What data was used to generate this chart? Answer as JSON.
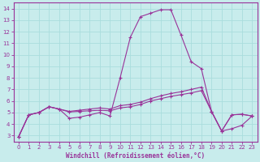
{
  "xlabel": "Windchill (Refroidissement éolien,°C)",
  "xlim": [
    -0.5,
    23.5
  ],
  "ylim": [
    2.5,
    14.5
  ],
  "yticks": [
    3,
    4,
    5,
    6,
    7,
    8,
    9,
    10,
    11,
    12,
    13,
    14
  ],
  "xticks": [
    0,
    1,
    2,
    3,
    4,
    5,
    6,
    7,
    8,
    9,
    10,
    11,
    12,
    13,
    14,
    15,
    16,
    17,
    18,
    19,
    20,
    21,
    22,
    23
  ],
  "bg_color": "#c8ecec",
  "line_color": "#993399",
  "grid_color": "#aadddd",
  "series1_x": [
    0,
    1,
    2,
    3,
    4,
    5,
    6,
    7,
    8,
    9,
    10,
    11,
    12,
    13,
    14,
    15,
    16,
    17,
    18,
    19,
    20,
    21,
    22,
    23
  ],
  "series1_y": [
    2.9,
    4.8,
    5.0,
    5.5,
    5.3,
    4.5,
    4.6,
    4.8,
    5.0,
    4.7,
    8.0,
    11.5,
    13.3,
    13.6,
    13.9,
    13.9,
    11.7,
    9.4,
    8.8,
    5.1,
    3.4,
    3.6,
    3.9,
    4.7
  ],
  "series2_x": [
    0,
    1,
    2,
    3,
    4,
    5,
    6,
    7,
    8,
    9,
    10,
    11,
    12,
    13,
    14,
    15,
    16,
    17,
    18,
    19,
    20,
    21,
    22,
    23
  ],
  "series2_y": [
    2.9,
    4.8,
    5.0,
    5.5,
    5.3,
    5.05,
    5.1,
    5.15,
    5.2,
    5.15,
    5.4,
    5.5,
    5.7,
    6.0,
    6.2,
    6.4,
    6.55,
    6.7,
    6.9,
    5.1,
    3.4,
    4.8,
    4.85,
    4.7
  ],
  "series3_x": [
    0,
    1,
    2,
    3,
    4,
    5,
    6,
    7,
    8,
    9,
    10,
    11,
    12,
    13,
    14,
    15,
    16,
    17,
    18,
    19,
    20,
    21,
    22,
    23
  ],
  "series3_y": [
    2.9,
    4.8,
    5.0,
    5.5,
    5.3,
    5.1,
    5.2,
    5.3,
    5.4,
    5.3,
    5.6,
    5.7,
    5.9,
    6.2,
    6.45,
    6.65,
    6.8,
    7.0,
    7.2,
    5.1,
    3.4,
    4.8,
    4.85,
    4.7
  ]
}
